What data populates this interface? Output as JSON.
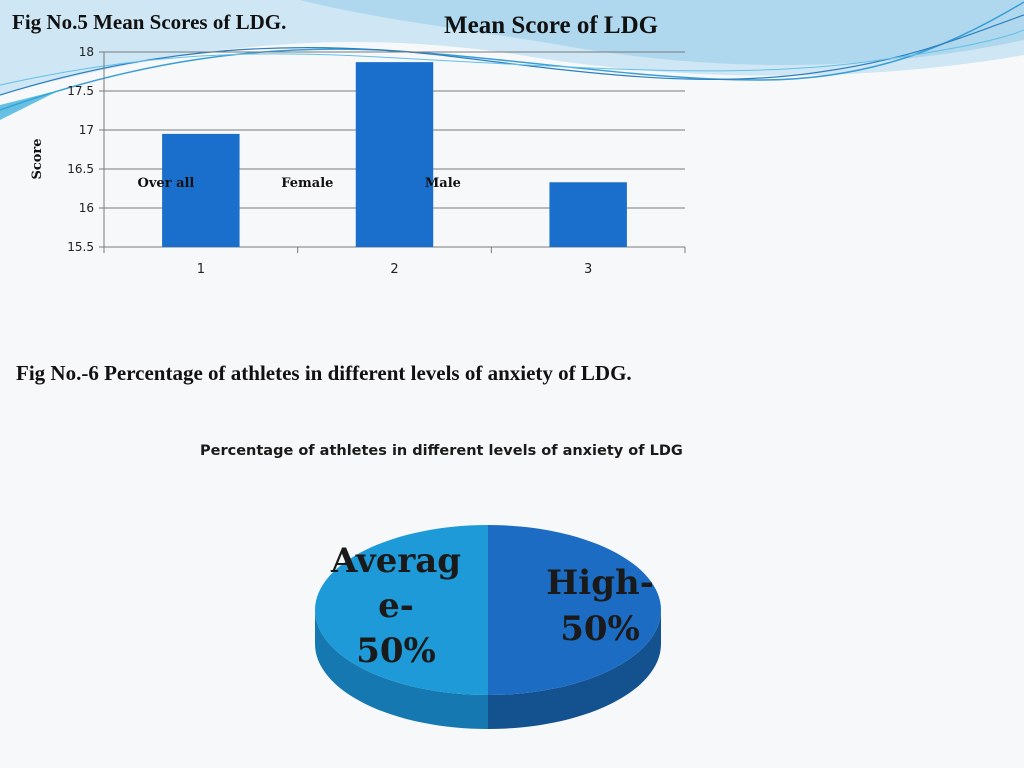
{
  "fig5": {
    "caption": "Fig No.5  Mean Scores of LDG."
  },
  "fig6": {
    "caption": "Fig No.-6   Percentage of athletes in different levels of anxiety of LDG."
  },
  "colors": {
    "bar": "#1a6fcd",
    "pie_high_top": "#1c6cc4",
    "pie_high_side": "#14528f",
    "pie_average_top": "#1e9ad8",
    "pie_average_side": "#1578b0",
    "wave": "#4ab6e0"
  },
  "chart_data": [
    {
      "type": "bar",
      "title": "Mean Score of LDG",
      "categories": [
        "1",
        "2",
        "3"
      ],
      "values": [
        16.95,
        17.87,
        16.33
      ],
      "annotations": [
        "Over all",
        "Female",
        "Male"
      ],
      "xlabel": "",
      "ylabel": "Score",
      "ylim": [
        15.5,
        18
      ],
      "yticks": [
        "15.5",
        "16",
        "16.5",
        "17",
        "17.5",
        "18"
      ],
      "grid": true
    },
    {
      "type": "pie",
      "title": "Percentage of athletes in different levels of anxiety of LDG",
      "labels": [
        "High-\n50%",
        "Averag\ne-\n50%"
      ],
      "values": [
        50,
        50
      ]
    }
  ]
}
